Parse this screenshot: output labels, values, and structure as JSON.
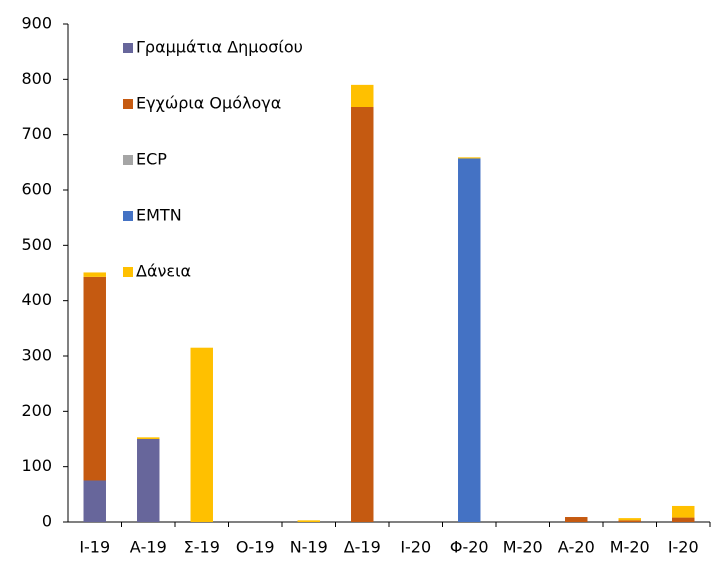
{
  "chart_data": {
    "type": "bar",
    "stacked": true,
    "categories": [
      "Ι-19",
      "Α-19",
      "Σ-19",
      "Ο-19",
      "Ν-19",
      "Δ-19",
      "Ι-20",
      "Φ-20",
      "Μ-20",
      "Α-20",
      "Μ-20",
      "Ι-20"
    ],
    "series": [
      {
        "name": "Γραμμάτια Δημοσίου",
        "color": "#67669b",
        "values": [
          75,
          150,
          0,
          0,
          0,
          0,
          0,
          0,
          0,
          0,
          0,
          0
        ]
      },
      {
        "name": "Εγχώρια Ομόλογα",
        "color": "#c55a11",
        "values": [
          368,
          0,
          0,
          0,
          0,
          750,
          0,
          0,
          0,
          9,
          3,
          8
        ]
      },
      {
        "name": "ECP",
        "color": "#a5a5a5",
        "values": [
          0,
          0,
          0,
          0,
          0,
          0,
          0,
          0,
          0,
          0,
          0,
          0
        ]
      },
      {
        "name": "EMTN",
        "color": "#4472c4",
        "values": [
          0,
          0,
          0,
          0,
          0,
          0,
          0,
          657,
          0,
          0,
          0,
          0
        ]
      },
      {
        "name": "Δάνεια",
        "color": "#ffc000",
        "values": [
          8,
          3,
          315,
          0,
          3,
          40,
          0,
          2,
          0,
          0,
          4,
          21
        ]
      }
    ],
    "ylim": [
      0,
      900
    ],
    "yticks": [
      0,
      100,
      200,
      300,
      400,
      500,
      600,
      700,
      800,
      900
    ],
    "grid": false,
    "legend": "upper left"
  }
}
